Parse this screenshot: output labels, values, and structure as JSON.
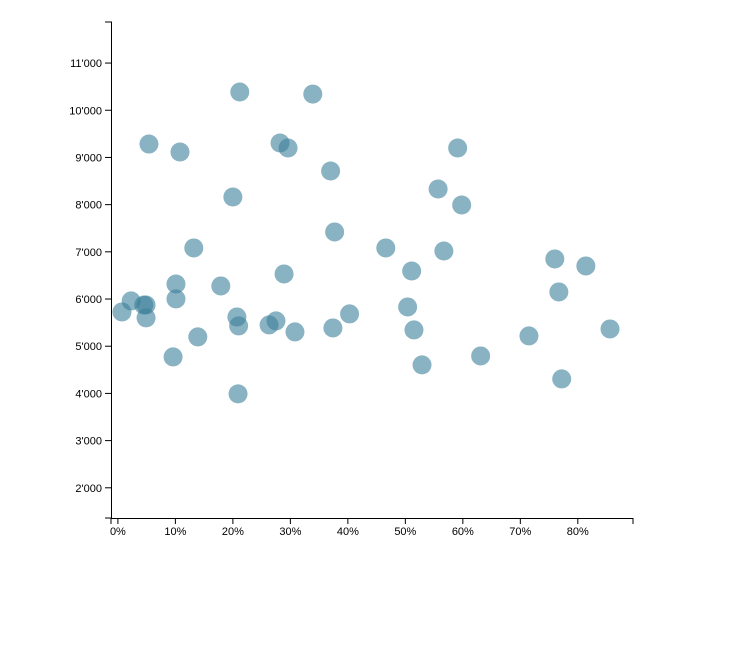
{
  "chart_data": {
    "type": "scatter",
    "color": "#3b7f99",
    "xlim": [
      -1.2,
      89.6
    ],
    "ylim": [
      1360,
      11870
    ],
    "xticks": [
      {
        "value": 0,
        "label": "0%"
      },
      {
        "value": 10,
        "label": "10%"
      },
      {
        "value": 20,
        "label": "20%"
      },
      {
        "value": 30,
        "label": "30%"
      },
      {
        "value": 40,
        "label": "40%"
      },
      {
        "value": 50,
        "label": "50%"
      },
      {
        "value": 60,
        "label": "60%"
      },
      {
        "value": 70,
        "label": "70%"
      },
      {
        "value": 80,
        "label": "80%"
      }
    ],
    "yticks": [
      {
        "value": 2000,
        "label": "2'000"
      },
      {
        "value": 3000,
        "label": "3'000"
      },
      {
        "value": 4000,
        "label": "4'000"
      },
      {
        "value": 5000,
        "label": "5'000"
      },
      {
        "value": 6000,
        "label": "6'000"
      },
      {
        "value": 7000,
        "label": "7'000"
      },
      {
        "value": 8000,
        "label": "8'000"
      },
      {
        "value": 9000,
        "label": "9'000"
      },
      {
        "value": 10000,
        "label": "10'000"
      },
      {
        "value": 11000,
        "label": "11'000"
      }
    ],
    "x": [
      0.7,
      2.3,
      4.5,
      4.9,
      4.9,
      5.4,
      9.6,
      10.1,
      10.1,
      10.8,
      13.2,
      13.9,
      17.9,
      20.0,
      20.7,
      21.0,
      20.9,
      21.2,
      26.3,
      27.5,
      28.2,
      28.9,
      29.6,
      30.8,
      33.9,
      37.0,
      37.4,
      37.7,
      40.3,
      46.6,
      50.4,
      51.1,
      51.5,
      52.9,
      55.7,
      56.7,
      59.1,
      59.8,
      63.1,
      71.5,
      76.0,
      76.7,
      77.2,
      81.4,
      85.6
    ],
    "values": [
      5726,
      5960,
      5874,
      5874,
      5600,
      9284,
      4773,
      6319,
      6002,
      9115,
      7082,
      5197,
      6277,
      8162,
      5620,
      5430,
      3990,
      10386,
      5451,
      5536,
      9306,
      6531,
      9200,
      5303,
      10343,
      8713,
      5387,
      7421,
      5684,
      7082,
      5832,
      6594,
      5345,
      4604,
      8331,
      7018,
      9200,
      7992,
      4794,
      5218,
      6849,
      6150,
      4307,
      6701,
      5366
    ]
  }
}
